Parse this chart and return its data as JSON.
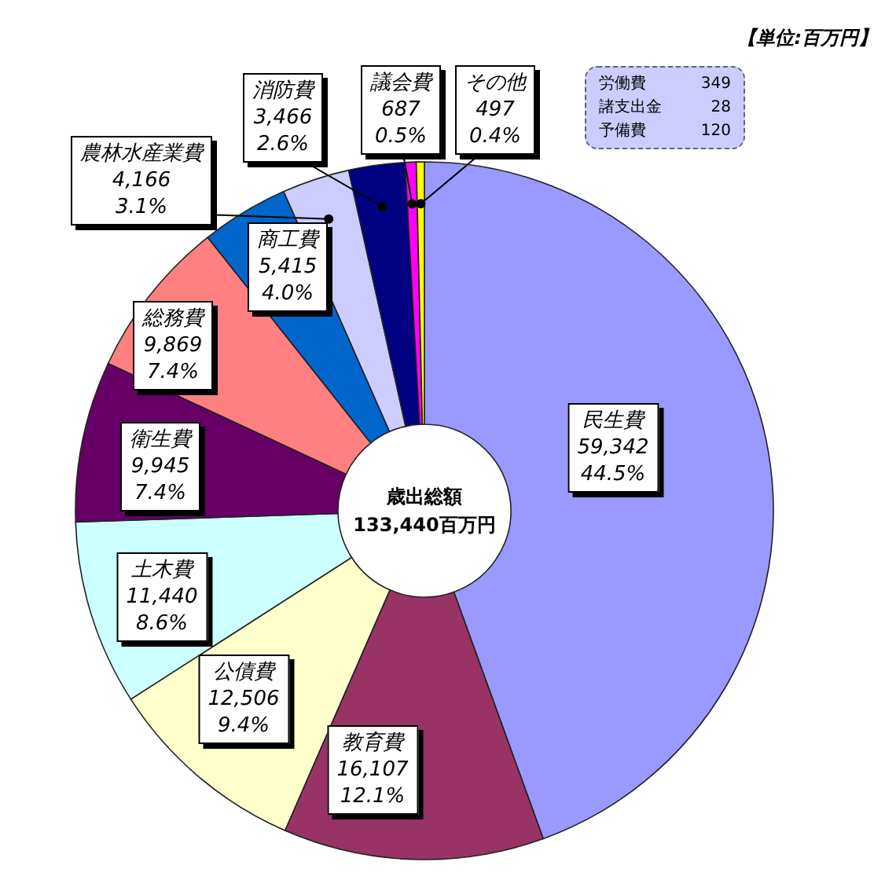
{
  "chart_data": {
    "type": "donut",
    "categories": [
      "民生費",
      "教育費",
      "公債費",
      "土木費",
      "衛生費",
      "総務費",
      "商工費",
      "農林水産業費",
      "消防費",
      "議会費",
      "その他"
    ],
    "values": [
      59342,
      16107,
      12506,
      11440,
      9945,
      9869,
      5415,
      4166,
      3466,
      687,
      497
    ],
    "colors": [
      "#9999ff",
      "#993366",
      "#ffffcc",
      "#ccffff",
      "#660066",
      "#ff8080",
      "#0066cc",
      "#ccccff",
      "#000080",
      "#ff00ff",
      "#ffff00"
    ],
    "value_labels": [
      "59,342\n44.5%",
      "16,107\n12.1%",
      "12,506\n9.4%",
      "11,440\n8.6%",
      "9,945\n7.4%",
      "9,869\n7.4%",
      "5,415\n4.0%",
      "4,166\n3.1%",
      "3,466\n2.6%",
      "687\n0.5%",
      "497\n0.4%"
    ],
    "annotations": [
      "【単位:百万円】",
      "歳出総額",
      "133,440百万円",
      "労働費 349",
      "諸支出金 28",
      "予備費 120"
    ]
  }
}
